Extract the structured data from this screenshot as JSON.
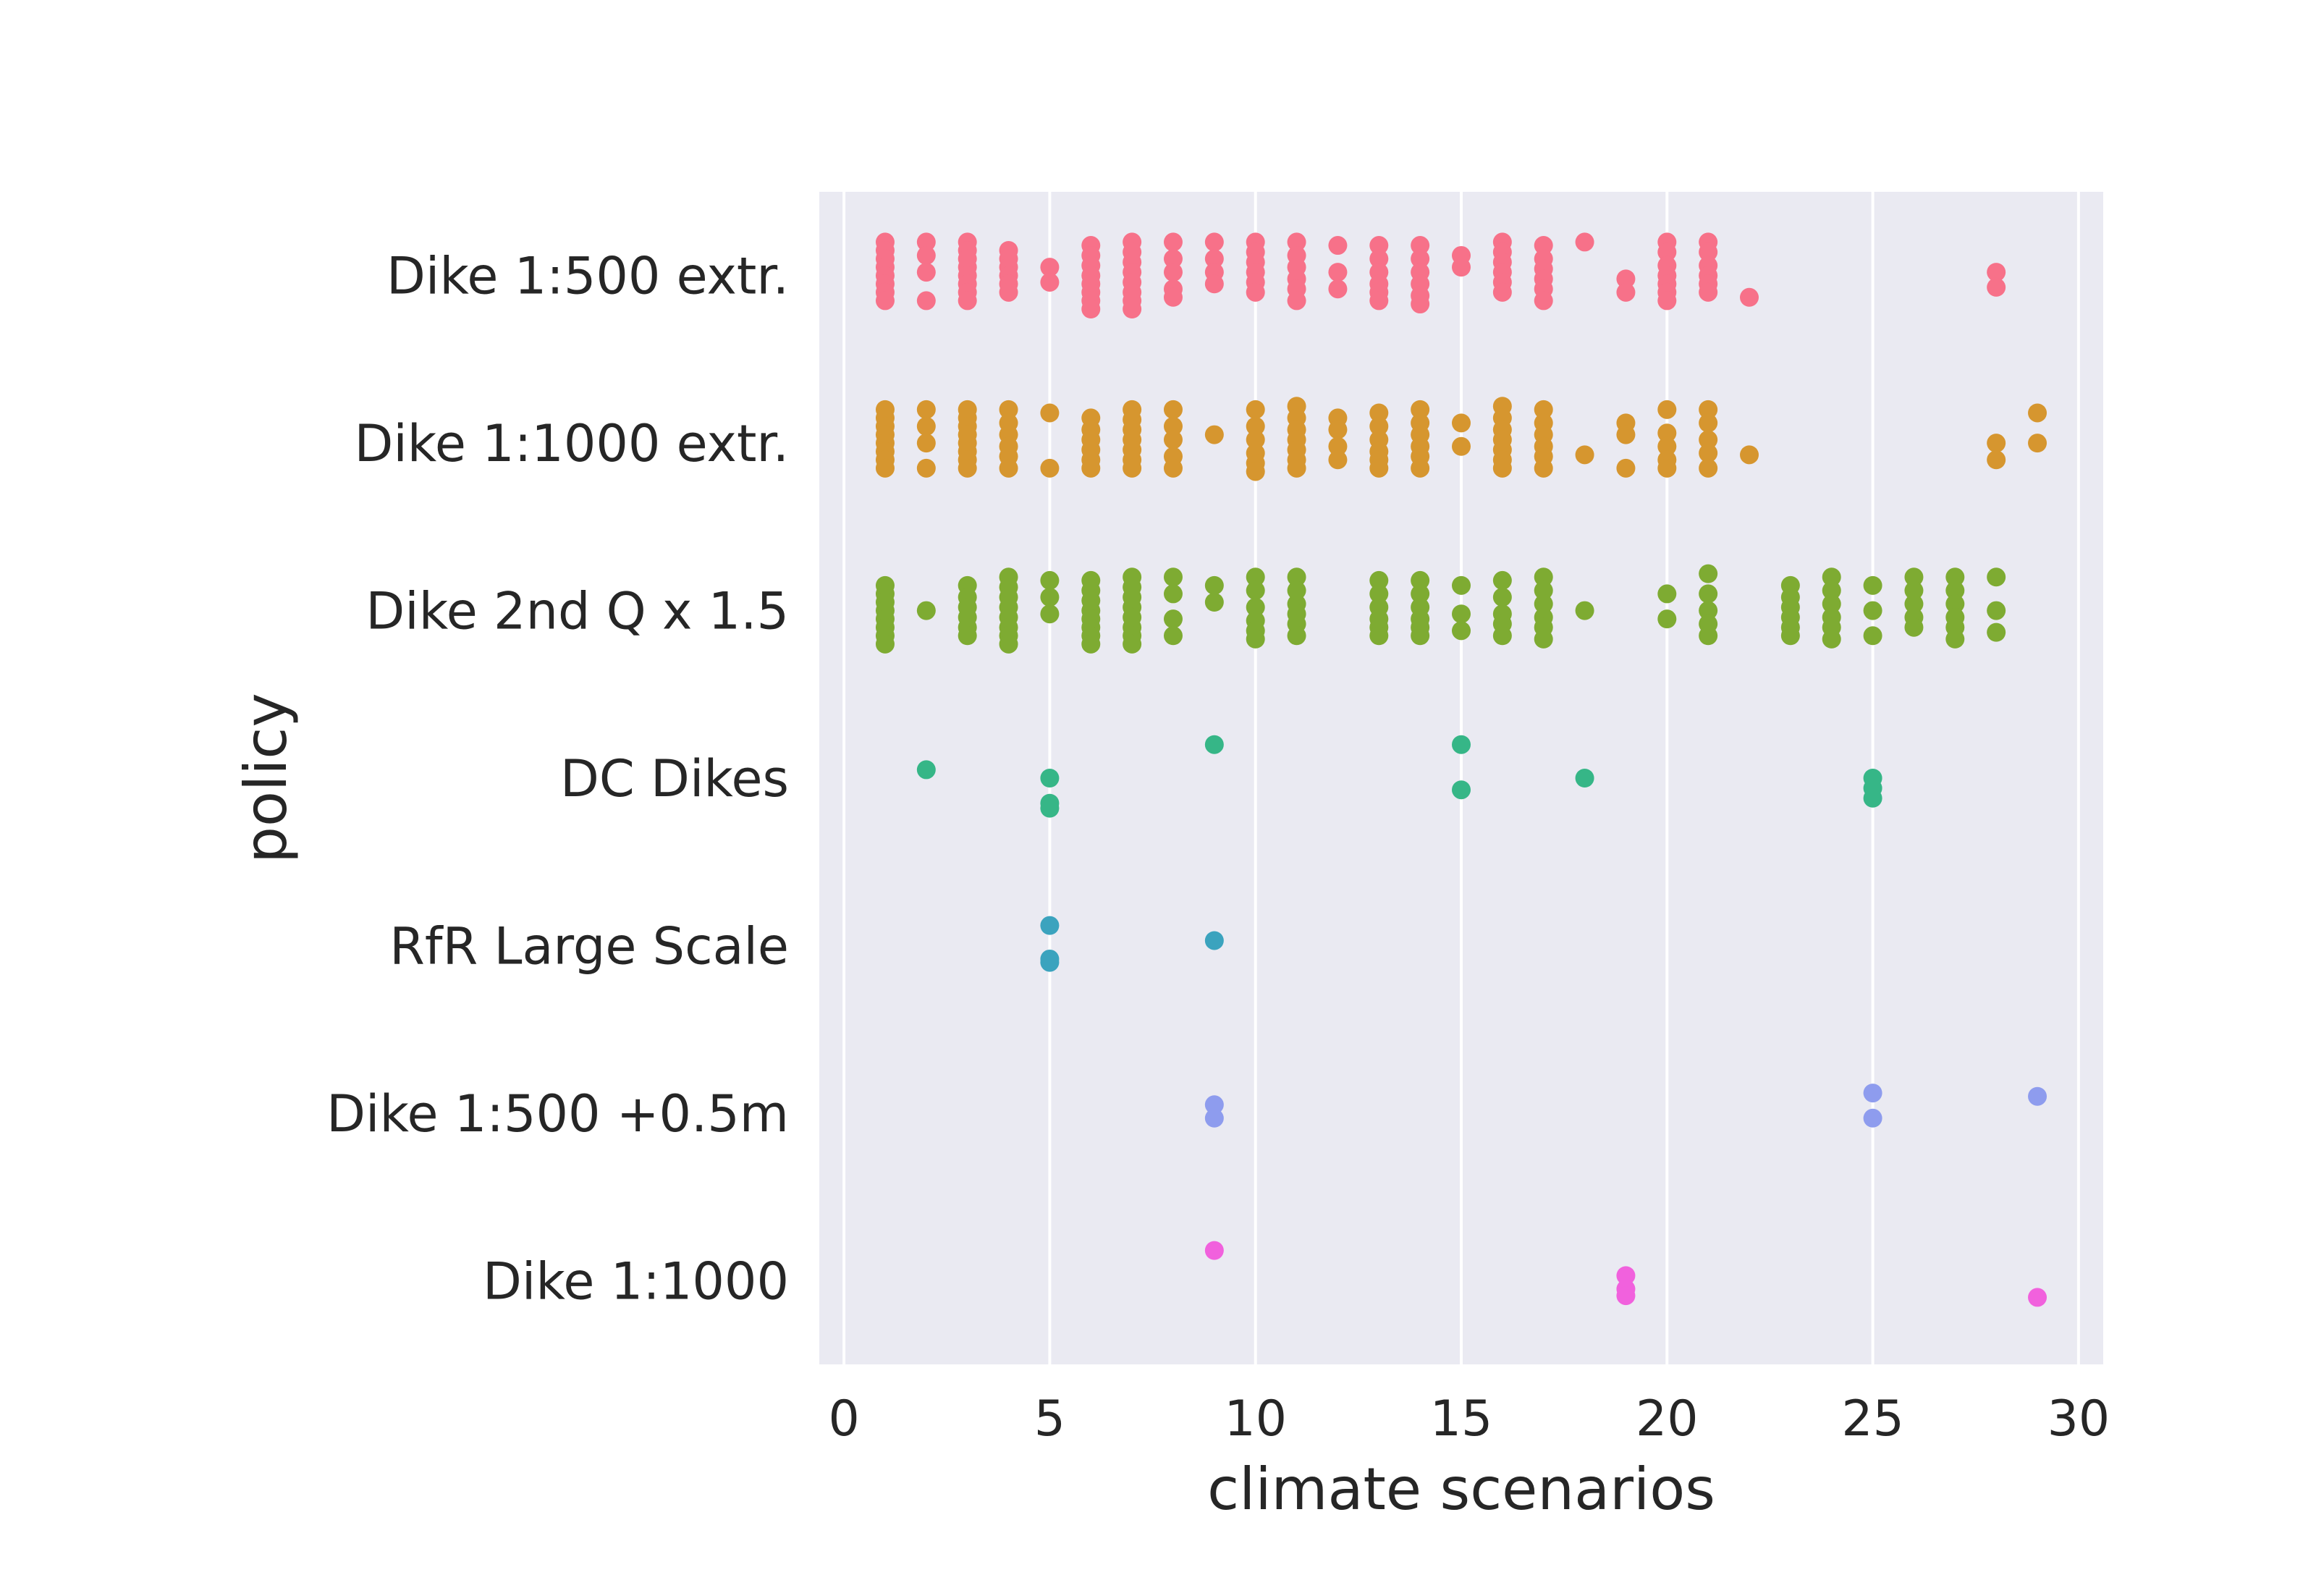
{
  "chart_data": {
    "type": "scatter",
    "subtype": "strip",
    "title": "",
    "xlabel": "climate scenarios",
    "ylabel": "policy",
    "xlim": [
      -0.6,
      30.6
    ],
    "xticks": [
      0,
      5,
      10,
      15,
      20,
      25,
      30
    ],
    "xtick_labels": [
      "0",
      "5",
      "10",
      "15",
      "20",
      "25",
      "30"
    ],
    "grid": true,
    "background": "#EAEAF2",
    "grid_color": "#FFFFFF",
    "categories": [
      "Dike 1:500 extr.",
      "Dike 1:1000 extr.",
      "Dike 2nd Q x 1.5",
      "DC Dikes",
      "RfR Large Scale",
      "Dike 1:500 +0.5m",
      "Dike 1:1000"
    ],
    "series": [
      {
        "category": "Dike 1:500 extr.",
        "color": "#F77189",
        "points": [
          {
            "x": 1,
            "j": [
              -0.2,
              -0.15,
              -0.1,
              -0.05,
              0,
              0.05,
              0.1,
              0.15
            ]
          },
          {
            "x": 2,
            "j": [
              -0.2,
              -0.12,
              -0.02,
              0.15
            ]
          },
          {
            "x": 3,
            "j": [
              -0.2,
              -0.15,
              -0.1,
              -0.05,
              0,
              0.05,
              0.1,
              0.15
            ]
          },
          {
            "x": 4,
            "j": [
              -0.15,
              -0.1,
              -0.05,
              0,
              0.05,
              0.1
            ]
          },
          {
            "x": 5,
            "j": [
              -0.05,
              0.04
            ]
          },
          {
            "x": 6,
            "j": [
              -0.18,
              -0.12,
              -0.06,
              0,
              0.05,
              0.1,
              0.15,
              0.2
            ]
          },
          {
            "x": 7,
            "j": [
              -0.2,
              -0.14,
              -0.08,
              -0.02,
              0.04,
              0.1,
              0.15,
              0.2
            ]
          },
          {
            "x": 8,
            "j": [
              -0.2,
              -0.1,
              -0.02,
              0.08,
              0.13
            ]
          },
          {
            "x": 9,
            "j": [
              -0.2,
              -0.1,
              -0.02,
              0.05
            ]
          },
          {
            "x": 10,
            "j": [
              -0.2,
              -0.14,
              -0.08,
              -0.02,
              0.04,
              0.1
            ]
          },
          {
            "x": 11,
            "j": [
              -0.2,
              -0.12,
              -0.05,
              0.02,
              0.08,
              0.15
            ]
          },
          {
            "x": 12,
            "j": [
              -0.18,
              -0.02,
              0.08
            ]
          },
          {
            "x": 13,
            "j": [
              -0.18,
              -0.1,
              -0.02,
              0.05,
              0.1,
              0.15
            ]
          },
          {
            "x": 14,
            "j": [
              -0.18,
              -0.1,
              -0.02,
              0.05,
              0.12,
              0.17
            ]
          },
          {
            "x": 15,
            "j": [
              -0.12,
              -0.05
            ]
          },
          {
            "x": 16,
            "j": [
              -0.2,
              -0.14,
              -0.08,
              -0.02,
              0.04,
              0.1
            ]
          },
          {
            "x": 17,
            "j": [
              -0.18,
              -0.1,
              -0.04,
              0.02,
              0.08,
              0.15
            ]
          },
          {
            "x": 18,
            "j": [
              -0.2
            ]
          },
          {
            "x": 19,
            "j": [
              0.02,
              0.1
            ]
          },
          {
            "x": 20,
            "j": [
              -0.2,
              -0.14,
              -0.06,
              0,
              0.05,
              0.1,
              0.15
            ]
          },
          {
            "x": 21,
            "j": [
              -0.2,
              -0.14,
              -0.06,
              0,
              0.05,
              0.1
            ]
          },
          {
            "x": 22,
            "j": [
              0.13
            ]
          },
          {
            "x": 28,
            "j": [
              -0.02,
              0.07
            ]
          }
        ]
      },
      {
        "category": "Dike 1:1000 extr.",
        "color": "#D6962F",
        "points": [
          {
            "x": 1,
            "j": [
              -0.2,
              -0.15,
              -0.1,
              -0.05,
              0,
              0.05,
              0.1,
              0.15
            ]
          },
          {
            "x": 2,
            "j": [
              -0.2,
              -0.1,
              0,
              0.15
            ]
          },
          {
            "x": 3,
            "j": [
              -0.2,
              -0.15,
              -0.1,
              -0.05,
              0,
              0.05,
              0.1,
              0.15
            ]
          },
          {
            "x": 4,
            "j": [
              -0.2,
              -0.12,
              -0.05,
              0.02,
              0.08,
              0.15
            ]
          },
          {
            "x": 5,
            "j": [
              -0.18,
              0.15
            ]
          },
          {
            "x": 6,
            "j": [
              -0.15,
              -0.08,
              -0.02,
              0.04,
              0.1,
              0.15
            ]
          },
          {
            "x": 7,
            "j": [
              -0.2,
              -0.14,
              -0.08,
              -0.02,
              0.04,
              0.1,
              0.15
            ]
          },
          {
            "x": 8,
            "j": [
              -0.2,
              -0.1,
              -0.02,
              0.08,
              0.15
            ]
          },
          {
            "x": 9,
            "j": [
              -0.05
            ]
          },
          {
            "x": 10,
            "j": [
              -0.2,
              -0.1,
              -0.02,
              0.06,
              0.12,
              0.17
            ]
          },
          {
            "x": 11,
            "j": [
              -0.22,
              -0.15,
              -0.08,
              -0.02,
              0.04,
              0.1,
              0.15
            ]
          },
          {
            "x": 12,
            "j": [
              -0.15,
              -0.08,
              0.02,
              0.1
            ]
          },
          {
            "x": 13,
            "j": [
              -0.18,
              -0.1,
              -0.02,
              0.05,
              0.1,
              0.15
            ]
          },
          {
            "x": 14,
            "j": [
              -0.2,
              -0.12,
              -0.05,
              0.02,
              0.08,
              0.15
            ]
          },
          {
            "x": 15,
            "j": [
              -0.12,
              0.02
            ]
          },
          {
            "x": 16,
            "j": [
              -0.22,
              -0.15,
              -0.08,
              -0.02,
              0.04,
              0.1,
              0.15
            ]
          },
          {
            "x": 17,
            "j": [
              -0.2,
              -0.12,
              -0.05,
              0.02,
              0.08,
              0.15
            ]
          },
          {
            "x": 18,
            "j": [
              0.07
            ]
          },
          {
            "x": 19,
            "j": [
              -0.12,
              -0.05,
              0.15
            ]
          },
          {
            "x": 20,
            "j": [
              -0.2,
              -0.06,
              0.02,
              0.1,
              0.15
            ]
          },
          {
            "x": 21,
            "j": [
              -0.2,
              -0.12,
              -0.02,
              0.06,
              0.15
            ]
          },
          {
            "x": 22,
            "j": [
              0.07
            ]
          },
          {
            "x": 28,
            "j": [
              0,
              0.1
            ]
          },
          {
            "x": 29,
            "j": [
              -0.18,
              0
            ]
          }
        ]
      },
      {
        "category": "Dike 2nd Q x 1.5",
        "color": "#7EAB32",
        "points": [
          {
            "x": 1,
            "j": [
              -0.15,
              -0.1,
              -0.05,
              0,
              0.05,
              0.1,
              0.15,
              0.2
            ]
          },
          {
            "x": 2,
            "j": [
              0
            ]
          },
          {
            "x": 3,
            "j": [
              -0.15,
              -0.08,
              -0.02,
              0.04,
              0.1,
              0.15
            ]
          },
          {
            "x": 4,
            "j": [
              -0.2,
              -0.14,
              -0.08,
              -0.02,
              0.04,
              0.1,
              0.15,
              0.2
            ]
          },
          {
            "x": 5,
            "j": [
              -0.18,
              -0.08,
              0.02
            ]
          },
          {
            "x": 6,
            "j": [
              -0.18,
              -0.12,
              -0.06,
              0,
              0.05,
              0.1,
              0.15,
              0.2
            ]
          },
          {
            "x": 7,
            "j": [
              -0.2,
              -0.14,
              -0.08,
              -0.02,
              0.04,
              0.1,
              0.15,
              0.2
            ]
          },
          {
            "x": 8,
            "j": [
              -0.2,
              -0.1,
              0.05,
              0.15
            ]
          },
          {
            "x": 9,
            "j": [
              -0.15,
              -0.05
            ]
          },
          {
            "x": 10,
            "j": [
              -0.2,
              -0.12,
              -0.02,
              0.06,
              0.12,
              0.17
            ]
          },
          {
            "x": 11,
            "j": [
              -0.2,
              -0.12,
              -0.04,
              0.02,
              0.08,
              0.15
            ]
          },
          {
            "x": 13,
            "j": [
              -0.18,
              -0.1,
              -0.02,
              0.05,
              0.1,
              0.15
            ]
          },
          {
            "x": 14,
            "j": [
              -0.18,
              -0.1,
              -0.02,
              0.05,
              0.1,
              0.15
            ]
          },
          {
            "x": 15,
            "j": [
              -0.15,
              0.02,
              0.12
            ]
          },
          {
            "x": 16,
            "j": [
              -0.18,
              -0.08,
              0.02,
              0.08,
              0.15
            ]
          },
          {
            "x": 17,
            "j": [
              -0.2,
              -0.12,
              -0.04,
              0.04,
              0.1,
              0.17
            ]
          },
          {
            "x": 18,
            "j": [
              0
            ]
          },
          {
            "x": 20,
            "j": [
              -0.1,
              0.05
            ]
          },
          {
            "x": 21,
            "j": [
              -0.22,
              -0.1,
              0,
              0.08,
              0.15
            ]
          },
          {
            "x": 23,
            "j": [
              -0.15,
              -0.08,
              -0.02,
              0.04,
              0.1,
              0.15
            ]
          },
          {
            "x": 24,
            "j": [
              -0.2,
              -0.12,
              -0.04,
              0.04,
              0.1,
              0.17
            ]
          },
          {
            "x": 25,
            "j": [
              -0.15,
              0,
              0.15
            ]
          },
          {
            "x": 26,
            "j": [
              -0.2,
              -0.12,
              -0.04,
              0.04,
              0.1
            ]
          },
          {
            "x": 27,
            "j": [
              -0.2,
              -0.12,
              -0.04,
              0.04,
              0.1,
              0.17
            ]
          },
          {
            "x": 28,
            "j": [
              -0.2,
              0,
              0.13
            ]
          }
        ]
      },
      {
        "category": "DC Dikes",
        "color": "#36B687",
        "points": [
          {
            "x": 2,
            "j": [
              -0.05
            ]
          },
          {
            "x": 5,
            "j": [
              0,
              0.15,
              0.18
            ]
          },
          {
            "x": 9,
            "j": [
              -0.2
            ]
          },
          {
            "x": 15,
            "j": [
              -0.2,
              0.07
            ]
          },
          {
            "x": 18,
            "j": [
              0
            ]
          },
          {
            "x": 25,
            "j": [
              0,
              0.06,
              0.12
            ]
          }
        ]
      },
      {
        "category": "RfR Large Scale",
        "color": "#3BA3BE",
        "points": [
          {
            "x": 5,
            "j": [
              -0.12,
              0.08,
              0.1
            ]
          },
          {
            "x": 9,
            "j": [
              -0.03
            ]
          }
        ]
      },
      {
        "category": "Dike 1:500 +0.5m",
        "color": "#8E9CEE",
        "points": [
          {
            "x": 9,
            "j": [
              -0.05,
              0.03
            ]
          },
          {
            "x": 25,
            "j": [
              -0.12,
              0.03
            ]
          },
          {
            "x": 29,
            "j": [
              -0.1
            ]
          }
        ]
      },
      {
        "category": "Dike 1:1000",
        "color": "#F161DD",
        "points": [
          {
            "x": 9,
            "j": [
              -0.18
            ]
          },
          {
            "x": 19,
            "j": [
              -0.03,
              0.05,
              0.09
            ]
          },
          {
            "x": 29,
            "j": [
              0.1
            ]
          }
        ]
      }
    ]
  }
}
